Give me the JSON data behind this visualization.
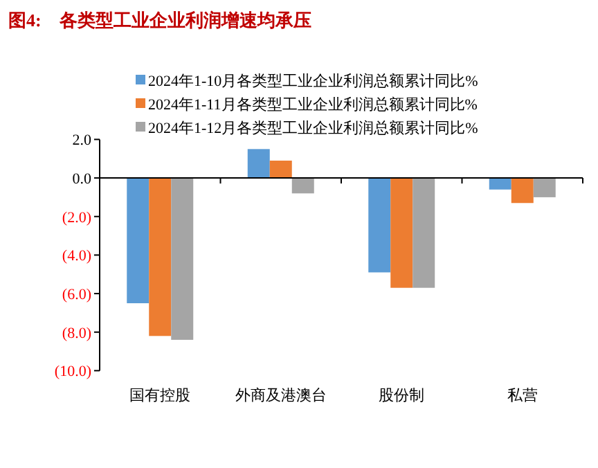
{
  "chart_data": {
    "type": "bar",
    "title": "图4:　各类型工业企业利润增速均承压",
    "categories": [
      "国有控股",
      "外商及港澳台",
      "股份制",
      "私营"
    ],
    "series": [
      {
        "name": "2024年1-10月各类型工业企业利润总额累计同比%",
        "color": "#5b9bd5",
        "values": [
          -6.5,
          1.5,
          -4.9,
          -0.6
        ]
      },
      {
        "name": "2024年1-11月各类型工业企业利润总额累计同比%",
        "color": "#ed7d31",
        "values": [
          -8.2,
          0.9,
          -5.7,
          -1.3
        ]
      },
      {
        "name": "2024年1-12月各类型工业企业利润总额累计同比%",
        "color": "#a5a5a5",
        "values": [
          -8.4,
          -0.8,
          -5.7,
          -1.0
        ]
      }
    ],
    "ylim": [
      -10,
      2
    ],
    "yticks": [
      {
        "value": 2,
        "label": "2.0"
      },
      {
        "value": 0,
        "label": "0.0"
      },
      {
        "value": -2,
        "label": "(2.0)"
      },
      {
        "value": -4,
        "label": "(4.0)"
      },
      {
        "value": -6,
        "label": "(6.0)"
      },
      {
        "value": -8,
        "label": "(8.0)"
      },
      {
        "value": -10,
        "label": "(10.0)"
      }
    ],
    "legend": "top"
  }
}
